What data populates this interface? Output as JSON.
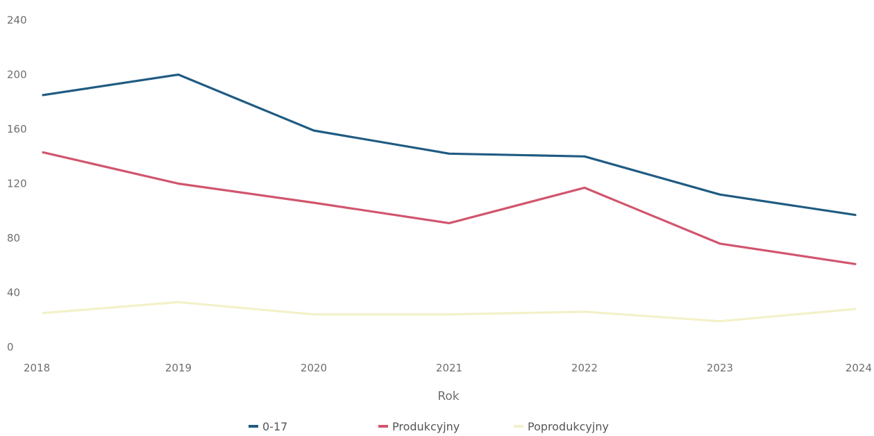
{
  "chart_data": {
    "type": "line",
    "title": "",
    "xlabel": "Rok",
    "ylabel": "",
    "x": [
      "2018",
      "2019",
      "2020",
      "2021",
      "2022",
      "2023",
      "2024"
    ],
    "ylim": [
      0,
      240
    ],
    "yticks": [
      "0",
      "40",
      "80",
      "120",
      "160",
      "200",
      "240"
    ],
    "grid": false,
    "legend_position": "bottom",
    "series": [
      {
        "name": "0-17",
        "color": "#1f5b82",
        "values": [
          185,
          200,
          159,
          142,
          140,
          112,
          97
        ]
      },
      {
        "name": "Produkcyjny",
        "color": "#d1556e",
        "values": [
          143,
          120,
          106,
          91,
          117,
          76,
          61
        ]
      },
      {
        "name": "Poprodukcyjny",
        "color": "#f3f1c9",
        "values": [
          25,
          33,
          24,
          24,
          26,
          19,
          28
        ]
      }
    ]
  }
}
